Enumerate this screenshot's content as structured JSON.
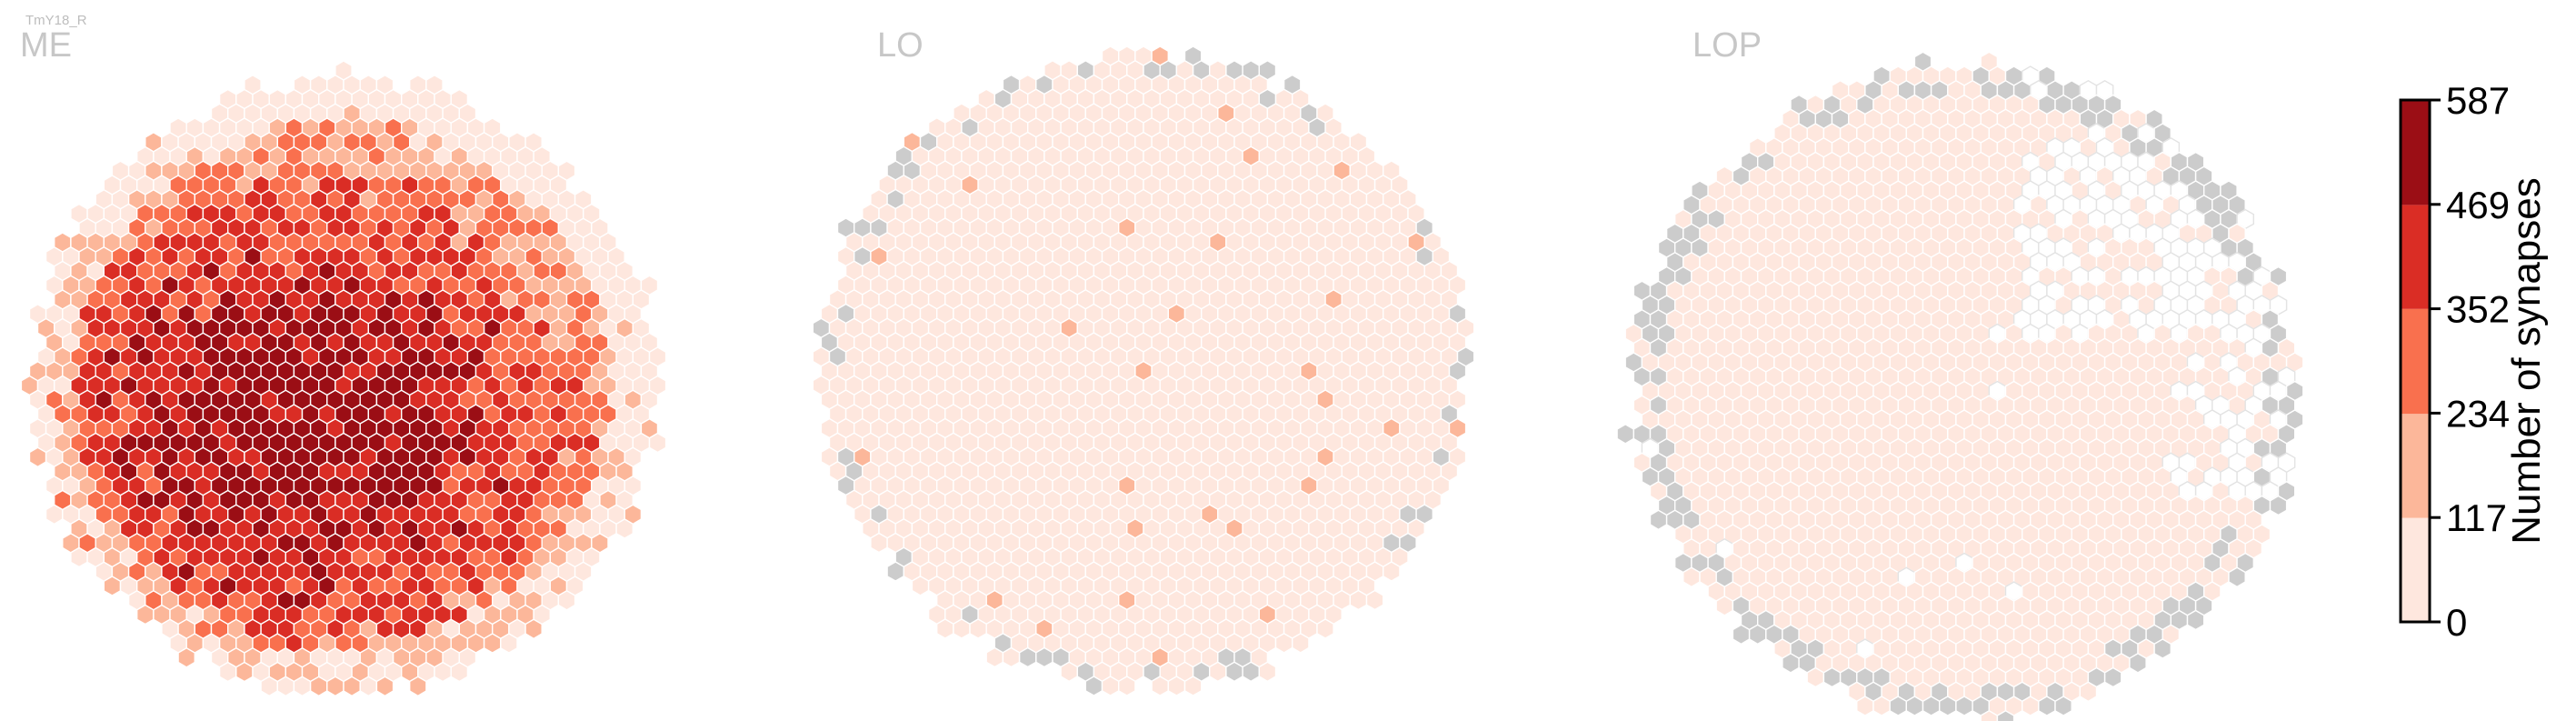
{
  "cell_type": "TmY18_R",
  "colorbar": {
    "label": "Number of synapses",
    "ticks": [
      "0",
      "117",
      "234",
      "352",
      "469",
      "587"
    ],
    "min": 0,
    "max": 587,
    "bins": [
      {
        "from": 0,
        "to": 117,
        "color": "#fee7de"
      },
      {
        "from": 117,
        "to": 234,
        "color": "#fcb79a"
      },
      {
        "from": 234,
        "to": 352,
        "color": "#f9704e"
      },
      {
        "from": 352,
        "to": 469,
        "color": "#da2d25"
      },
      {
        "from": 469,
        "to": 587,
        "color": "#9b0e15"
      }
    ]
  },
  "colors": {
    "no_column": "#cccccc",
    "empty_column": "#ffffff",
    "panel_title": "#c7c7c7",
    "cell_name": "#bdbdbd"
  },
  "chart_data": [
    {
      "type": "heatmap",
      "title": "ME",
      "grid": "hexagonal",
      "cells": "about 880 hexagonal columns; many 352-587 synapses in center, mostly 117-469 elsewhere, low values at rim",
      "value_range": [
        0,
        587
      ]
    },
    {
      "type": "heatmap",
      "title": "LO",
      "grid": "hexagonal",
      "cells": "nearly all columns 0-117 synapses, about 14 scattered columns 117-234, gray columns along rim",
      "value_range": [
        0,
        587
      ]
    },
    {
      "type": "heatmap",
      "title": "LOP",
      "grid": "hexagonal",
      "cells": "nearly all columns 0-117 synapses, empty (white) columns in upper right, gray columns along rim",
      "value_range": [
        0,
        587
      ]
    }
  ]
}
